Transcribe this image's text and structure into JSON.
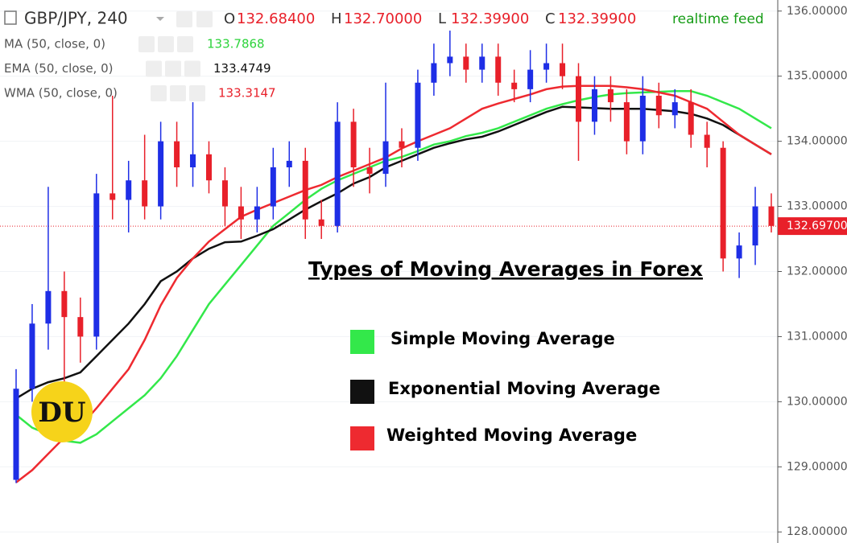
{
  "chart_data": {
    "type": "candlestick",
    "title": "Types of Moving Averages in Forex",
    "symbol": "GBP/JPY, 240",
    "ohlc_readout": [
      {
        "label": "O",
        "value": "132.68400"
      },
      {
        "label": "H",
        "value": "132.70000"
      },
      {
        "label": "L",
        "value": "132.39900"
      },
      {
        "label": "C",
        "value": "132.39900"
      }
    ],
    "feed_label": "realtime feed",
    "logo_text": "DU",
    "up_color": "#1e2ee6",
    "down_color": "#e8202a",
    "ylim": [
      127.83,
      136.17
    ],
    "yticks": [
      {
        "value": 128,
        "label": "128.00000"
      },
      {
        "value": 129,
        "label": "129.00000"
      },
      {
        "value": 130,
        "label": "130.00000"
      },
      {
        "value": 131,
        "label": "131.00000"
      },
      {
        "value": 132,
        "label": "132.00000"
      },
      {
        "value": 133,
        "label": "133.00000"
      },
      {
        "value": 134,
        "label": "134.00000"
      },
      {
        "value": 135,
        "label": "135.00000"
      },
      {
        "value": 136,
        "label": "136.00000"
      }
    ],
    "grid": true,
    "last_price": {
      "value": 132.697,
      "label": "132.69700"
    },
    "candles": {
      "open": [
        128.8,
        130.2,
        131.2,
        131.7,
        131.3,
        131.0,
        133.2,
        133.1,
        133.4,
        133.0,
        134.0,
        133.6,
        133.8,
        133.4,
        133.0,
        132.8,
        133.0,
        133.6,
        133.7,
        132.8,
        132.7,
        134.3,
        133.6,
        133.5,
        134.0,
        133.9,
        134.9,
        135.2,
        135.3,
        135.1,
        135.3,
        134.9,
        134.8,
        135.1,
        135.2,
        135.0,
        134.3,
        134.8,
        134.6,
        134.0,
        134.7,
        134.4,
        134.6,
        134.1,
        133.9,
        132.2,
        132.4,
        133.0
      ],
      "high": [
        130.5,
        131.5,
        133.3,
        132.0,
        131.6,
        133.5,
        134.7,
        133.7,
        134.1,
        134.3,
        134.3,
        134.6,
        134.0,
        133.6,
        133.3,
        133.3,
        133.9,
        134.0,
        133.9,
        133.1,
        134.6,
        134.5,
        133.9,
        134.9,
        134.2,
        135.1,
        135.5,
        135.7,
        135.5,
        135.5,
        135.5,
        135.1,
        135.4,
        135.5,
        135.5,
        135.2,
        135.0,
        135.0,
        134.8,
        135.0,
        134.9,
        134.8,
        134.8,
        134.3,
        134.0,
        132.6,
        133.3,
        133.2
      ],
      "low": [
        128.75,
        130.0,
        130.8,
        130.3,
        130.6,
        130.8,
        132.8,
        132.6,
        132.8,
        132.8,
        133.3,
        133.3,
        133.2,
        132.7,
        132.5,
        132.6,
        132.8,
        133.3,
        132.5,
        132.5,
        132.6,
        133.3,
        133.2,
        133.3,
        133.6,
        133.7,
        134.7,
        135.0,
        134.9,
        134.9,
        134.7,
        134.6,
        134.6,
        134.9,
        134.8,
        133.7,
        134.1,
        134.3,
        133.8,
        133.8,
        134.2,
        134.2,
        133.9,
        133.6,
        132.0,
        131.9,
        132.1,
        132.6
      ],
      "close": [
        130.2,
        131.2,
        131.7,
        131.3,
        131.0,
        133.2,
        133.1,
        133.4,
        133.0,
        134.0,
        133.6,
        133.8,
        133.4,
        133.0,
        132.8,
        133.0,
        133.6,
        133.7,
        132.8,
        132.7,
        134.3,
        133.6,
        133.5,
        134.0,
        133.9,
        134.9,
        135.2,
        135.3,
        135.1,
        135.3,
        134.9,
        134.8,
        135.1,
        135.2,
        135.0,
        134.3,
        134.8,
        134.6,
        134.0,
        134.7,
        134.4,
        134.6,
        134.1,
        133.9,
        132.2,
        132.4,
        133.0,
        132.7
      ]
    },
    "series": [
      {
        "name": "Simple Moving Average",
        "indicator": "MA (50, close, 0)",
        "reading": "133.7868",
        "color": "#33e84a",
        "values": [
          129.8,
          129.6,
          129.5,
          129.4,
          129.37,
          129.5,
          129.7,
          129.9,
          130.1,
          130.36,
          130.7,
          131.1,
          131.5,
          131.8,
          132.1,
          132.4,
          132.7,
          132.9,
          133.1,
          133.27,
          133.4,
          133.5,
          133.6,
          133.7,
          133.76,
          133.85,
          133.95,
          134.0,
          134.08,
          134.13,
          134.2,
          134.3,
          134.4,
          134.5,
          134.57,
          134.63,
          134.68,
          134.72,
          134.74,
          134.75,
          134.76,
          134.77,
          134.77,
          134.7,
          134.6,
          134.5,
          134.35,
          134.2
        ]
      },
      {
        "name": "Exponential Moving Average",
        "indicator": "EMA (50, close, 0)",
        "reading": "133.4749",
        "color": "#111111",
        "values": [
          130.05,
          130.2,
          130.3,
          130.36,
          130.45,
          130.7,
          130.95,
          131.2,
          131.5,
          131.85,
          132.0,
          132.2,
          132.35,
          132.45,
          132.46,
          132.55,
          132.65,
          132.8,
          132.95,
          133.08,
          133.2,
          133.35,
          133.45,
          133.6,
          133.7,
          133.8,
          133.9,
          133.97,
          134.03,
          134.07,
          134.15,
          134.25,
          134.35,
          134.45,
          134.53,
          134.52,
          134.51,
          134.5,
          134.5,
          134.5,
          134.48,
          134.46,
          134.42,
          134.35,
          134.25,
          134.1,
          133.95,
          133.8
        ]
      },
      {
        "name": "Weighted Moving Average",
        "indicator": "WMA (50, close, 0)",
        "reading": "133.3147",
        "color": "#ee2a30",
        "values": [
          128.76,
          128.95,
          129.2,
          129.45,
          129.62,
          129.9,
          130.2,
          130.5,
          130.95,
          131.48,
          131.9,
          132.2,
          132.46,
          132.65,
          132.84,
          132.95,
          133.05,
          133.15,
          133.25,
          133.33,
          133.45,
          133.55,
          133.65,
          133.75,
          133.89,
          134.0,
          134.1,
          134.2,
          134.35,
          134.5,
          134.58,
          134.65,
          134.72,
          134.8,
          134.84,
          134.85,
          134.85,
          134.85,
          134.83,
          134.8,
          134.75,
          134.7,
          134.6,
          134.5,
          134.3,
          134.1,
          133.95,
          133.8
        ]
      }
    ]
  }
}
